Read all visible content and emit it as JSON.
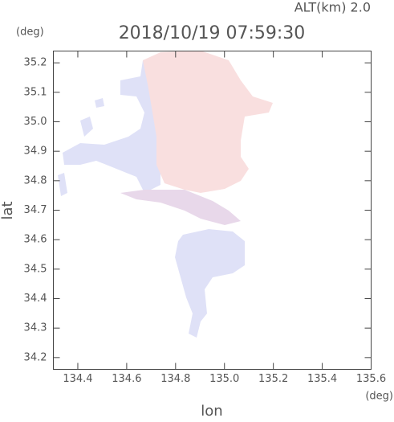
{
  "chart_data": {
    "type": "map",
    "title": "2018/10/19 07:59:30",
    "subtitle": "ALT(km) 2.0",
    "x_label": "lon",
    "y_label": "lat",
    "x_unit": "(deg)",
    "y_unit": "(deg)",
    "xlim": [
      134.3,
      135.6
    ],
    "ylim": [
      34.16,
      35.24
    ],
    "xticks": [
      134.4,
      134.6,
      134.8,
      {
        "value": 135.0,
        "label": "135.0"
      },
      135.2,
      135.4,
      135.6
    ],
    "yticks": [
      34.2,
      34.3,
      34.4,
      34.5,
      34.6,
      34.7,
      34.8,
      34.9,
      {
        "value": 35.0,
        "label": "35.0"
      },
      35.1,
      35.2
    ]
  }
}
